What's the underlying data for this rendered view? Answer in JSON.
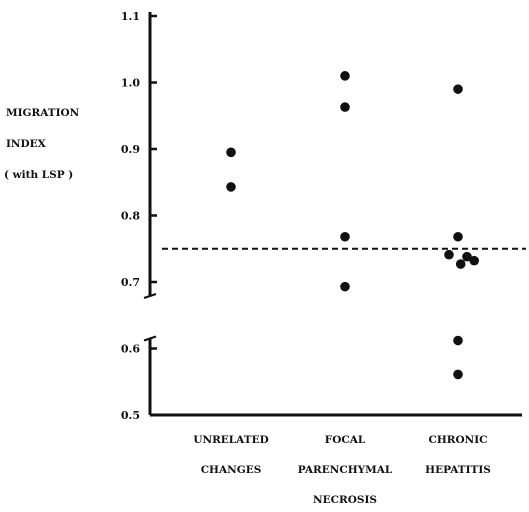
{
  "chart_data": {
    "type": "scatter",
    "title": "",
    "ylabel_lines": [
      "MIGRATION",
      "INDEX",
      "( with LSP )"
    ],
    "xlabel": "",
    "ylim": [
      0.5,
      1.1
    ],
    "yticks": [
      0.5,
      0.6,
      0.7,
      0.8,
      0.9,
      1.0,
      1.1
    ],
    "ytick_labels": [
      "0.5",
      "0.6",
      "0.7",
      "0.8",
      "0.9",
      "1.0",
      "1.1"
    ],
    "axis_break_between": [
      0.6,
      0.7
    ],
    "reference_line": {
      "y": 0.75,
      "style": "dashed"
    },
    "categories": [
      {
        "lines": [
          "UNRELATED",
          "CHANGES"
        ]
      },
      {
        "lines": [
          "FOCAL",
          "PARENCHYMAL",
          "NECROSIS"
        ]
      },
      {
        "lines": [
          "CHRONIC",
          "HEPATITIS"
        ]
      }
    ],
    "points": [
      {
        "category": 0,
        "y": 0.895
      },
      {
        "category": 0,
        "y": 0.843
      },
      {
        "category": 1,
        "y": 1.01
      },
      {
        "category": 1,
        "y": 0.963
      },
      {
        "category": 1,
        "y": 0.768
      },
      {
        "category": 1,
        "y": 0.693
      },
      {
        "category": 2,
        "y": 0.99
      },
      {
        "category": 2,
        "y": 0.768,
        "offset": 0
      },
      {
        "category": 2,
        "y": 0.741,
        "offset": -1
      },
      {
        "category": 2,
        "y": 0.738,
        "offset": 1
      },
      {
        "category": 2,
        "y": 0.732,
        "offset": 1.8
      },
      {
        "category": 2,
        "y": 0.727,
        "offset": 0.3
      },
      {
        "category": 2,
        "y": 0.612,
        "offset": 0
      },
      {
        "category": 2,
        "y": 0.561,
        "offset": 0
      }
    ],
    "grid": false,
    "legend": "none"
  }
}
